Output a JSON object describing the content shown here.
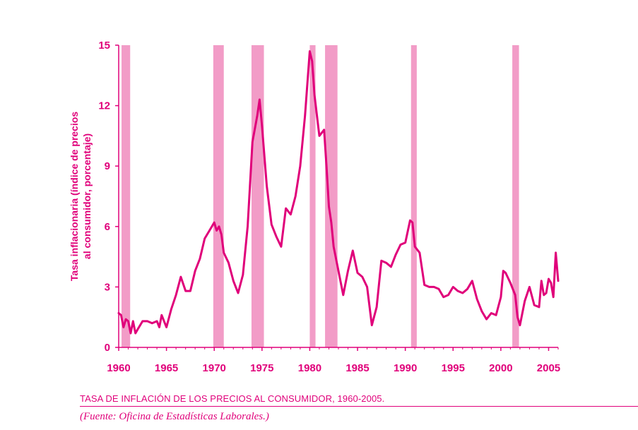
{
  "chart_data": {
    "type": "line",
    "ylabel_lines": [
      "Tasa inflacionaria (índice de precios",
      "al consumidor, porcentaje)"
    ],
    "xlabel": "",
    "xlim": [
      1960,
      2006
    ],
    "ylim": [
      0,
      15
    ],
    "x_ticks": [
      "1960",
      "1965",
      "1970",
      "1975",
      "1980",
      "1985",
      "1990",
      "1995",
      "2000",
      "2005"
    ],
    "y_ticks": [
      "0",
      "3",
      "6",
      "9",
      "12",
      "15"
    ],
    "line_color": "#e0007a",
    "recession_color": "#f29cc7",
    "recessions": [
      [
        1960.3,
        1961.2
      ],
      [
        1969.9,
        1971.0
      ],
      [
        1973.9,
        1975.2
      ],
      [
        1980.0,
        1980.6
      ],
      [
        1981.6,
        1982.9
      ],
      [
        1990.6,
        1991.2
      ],
      [
        2001.2,
        2001.9
      ]
    ],
    "series": [
      {
        "x": [
          1960,
          1960.25,
          1960.5,
          1960.75,
          1961,
          1961.25,
          1961.5,
          1961.75,
          1962,
          1962.5,
          1963,
          1963.5,
          1964,
          1964.25,
          1964.5,
          1965,
          1965.5,
          1966,
          1966.5,
          1967,
          1967.5,
          1968,
          1968.5,
          1969,
          1969.5,
          1970,
          1970.25,
          1970.5,
          1970.75,
          1971,
          1971.5,
          1972,
          1972.5,
          1973,
          1973.5,
          1974,
          1974.5,
          1974.75,
          1975,
          1975.5,
          1976,
          1976.5,
          1977,
          1977.5,
          1978,
          1978.5,
          1979,
          1979.5,
          1980,
          1980.25,
          1980.5,
          1980.75,
          1981,
          1981.5,
          1981.75,
          1982,
          1982.25,
          1982.5,
          1983,
          1983.5,
          1984,
          1984.5,
          1985,
          1985.5,
          1986,
          1986.5,
          1987,
          1987.5,
          1988,
          1988.5,
          1989,
          1989.5,
          1990,
          1990.5,
          1990.75,
          1991,
          1991.5,
          1992,
          1992.5,
          1993,
          1993.5,
          1994,
          1994.5,
          1995,
          1995.5,
          1996,
          1996.5,
          1997,
          1997.5,
          1998,
          1998.5,
          1999,
          1999.5,
          2000,
          2000.25,
          2000.5,
          2001,
          2001.25,
          2001.5,
          2001.75,
          2002,
          2002.5,
          2003,
          2003.5,
          2004,
          2004.25,
          2004.5,
          2004.75,
          2005,
          2005.25,
          2005.5,
          2005.75,
          2006
        ],
        "values": [
          1.7,
          1.6,
          1.0,
          1.4,
          1.3,
          0.7,
          1.3,
          0.7,
          0.9,
          1.3,
          1.3,
          1.2,
          1.3,
          1.0,
          1.6,
          1.0,
          1.9,
          2.6,
          3.5,
          2.8,
          2.8,
          3.8,
          4.4,
          5.4,
          5.8,
          6.2,
          5.8,
          6.0,
          5.6,
          4.7,
          4.2,
          3.3,
          2.7,
          3.6,
          6.0,
          10.2,
          11.5,
          12.3,
          11.0,
          8.0,
          6.1,
          5.5,
          5.0,
          6.9,
          6.6,
          7.5,
          9.0,
          11.5,
          14.7,
          14.2,
          12.5,
          11.5,
          10.5,
          10.8,
          9.0,
          7.0,
          6.2,
          5.0,
          3.8,
          2.6,
          3.8,
          4.8,
          3.7,
          3.5,
          3.0,
          1.1,
          2.0,
          4.3,
          4.2,
          4.0,
          4.6,
          5.1,
          5.2,
          6.3,
          6.2,
          5.0,
          4.7,
          3.1,
          3.0,
          3.0,
          2.9,
          2.5,
          2.6,
          3.0,
          2.8,
          2.7,
          2.9,
          3.3,
          2.4,
          1.8,
          1.4,
          1.7,
          1.6,
          2.5,
          3.8,
          3.7,
          3.2,
          2.9,
          2.6,
          1.5,
          1.1,
          2.3,
          3.0,
          2.1,
          2.0,
          3.3,
          2.6,
          2.7,
          3.4,
          3.2,
          2.5,
          4.7,
          3.3
        ]
      }
    ]
  },
  "caption": "TASA DE INFLACIÓN DE LOS PRECIOS AL CONSUMIDOR, 1960-2005.",
  "source": "(Fuente: Oficina de Estadísticas Laborales.)"
}
